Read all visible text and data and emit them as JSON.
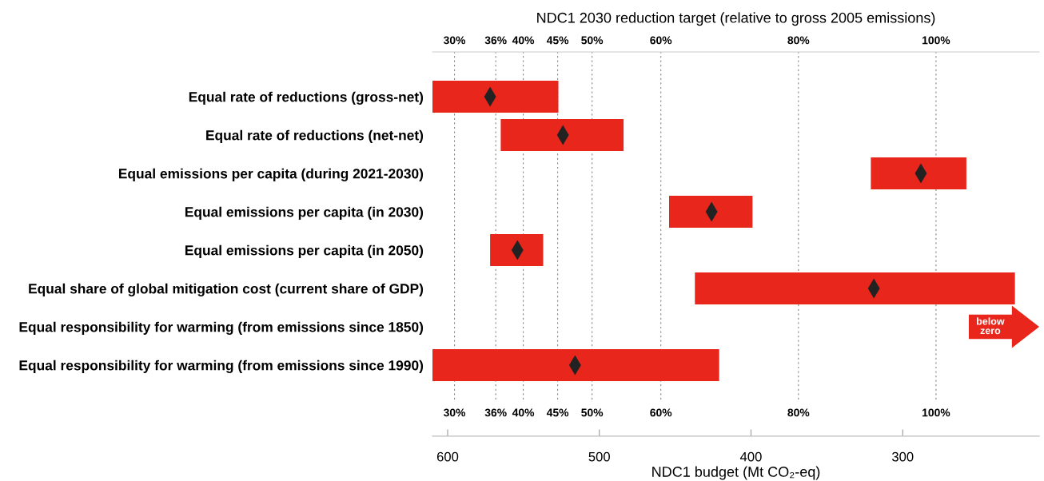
{
  "chart_data": {
    "type": "bar",
    "orientation": "horizontal",
    "categories": [
      "Equal rate of reductions (gross-net)",
      "Equal rate of reductions (net-net)",
      "Equal emissions per capita (during 2021-2030)",
      "Equal emissions per capita (in 2030)",
      "Equal emissions per capita (in 2050)",
      "Equal share of global mitigation cost (current share of GDP)",
      "Equal responsibility for warming (from emissions since 1850)",
      "Equal responsibility for warming (from emissions since 1990)"
    ],
    "series": [
      {
        "type": "bar",
        "color": "#e8261c",
        "base": [
          527,
          484,
          258,
          399,
          537,
          226,
          null,
          421
        ],
        "values": [
          83,
          81,
          63,
          55,
          35,
          211,
          null,
          189
        ]
      },
      {
        "type": "scatter",
        "color": "#222222",
        "marker": "diamond",
        "values": [
          572,
          524,
          288,
          426,
          554,
          319,
          null,
          516
        ]
      }
    ],
    "xlabel": "NDC1 budget (Mt CO₂-eq)",
    "xlim": [
      610,
      210
    ],
    "xticks": [
      600,
      500,
      400,
      300
    ],
    "x2label": "NDC1 2030 reduction target (relative to gross 2005 emissions)",
    "x2lim": [
      26.8,
      115
    ],
    "x2ticks": [
      {
        "value": 30,
        "label": "30%"
      },
      {
        "value": 36,
        "label": "36%"
      },
      {
        "value": 40,
        "label": "40%"
      },
      {
        "value": 45,
        "label": "45%"
      },
      {
        "value": 50,
        "label": "50%"
      },
      {
        "value": 60,
        "label": "60%"
      },
      {
        "value": 80,
        "label": "80%"
      },
      {
        "value": 100,
        "label": "100%"
      }
    ],
    "grid": "x",
    "annotations": [
      "below\nzero"
    ]
  }
}
